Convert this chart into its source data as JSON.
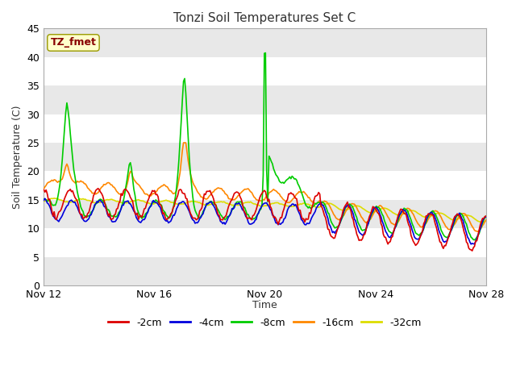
{
  "title": "Tonzi Soil Temperatures Set C",
  "xlabel": "Time",
  "ylabel": "Soil Temperature (C)",
  "ylim": [
    0,
    45
  ],
  "yticks": [
    0,
    5,
    10,
    15,
    20,
    25,
    30,
    35,
    40,
    45
  ],
  "xlim_start": 0,
  "xlim_end": 384,
  "xtick_positions": [
    0,
    96,
    192,
    288,
    384
  ],
  "xtick_labels": [
    "Nov 12",
    "Nov 16",
    "Nov 20",
    "Nov 24",
    "Nov 28"
  ],
  "legend_labels": [
    "-2cm",
    "-4cm",
    "-8cm",
    "-16cm",
    "-32cm"
  ],
  "legend_colors": [
    "#dd0000",
    "#0000dd",
    "#00cc00",
    "#ff8800",
    "#dddd00"
  ],
  "annotation_text": "TZ_fmet",
  "annotation_color": "#880000",
  "annotation_bg": "#ffffcc",
  "annotation_border": "#999900",
  "fig_bg": "#ffffff",
  "plot_bg_light": "#ffffff",
  "plot_bg_dark": "#e8e8e8",
  "grid_color": "#ffffff",
  "figsize": [
    6.4,
    4.8
  ],
  "dpi": 100
}
